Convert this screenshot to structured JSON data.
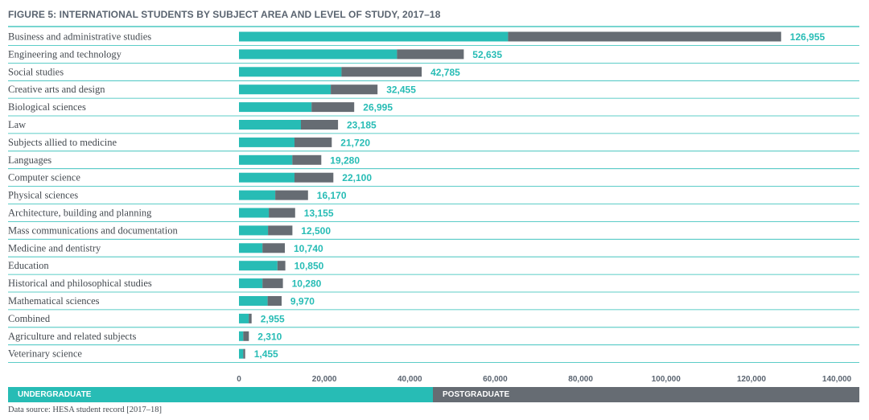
{
  "title": "FIGURE 5: INTERNATIONAL STUDENTS BY SUBJECT AREA AND LEVEL OF STUDY, 2017–18",
  "source": "Data source: HESA student record [2017–18]",
  "legend": {
    "undergraduate": "UNDERGRADUATE",
    "postgraduate": "POSTGRADUATE"
  },
  "colors": {
    "undergraduate": "#27bcb5",
    "postgraduate": "#666c73",
    "label": "#27bcb5",
    "rule": "#27bcb5"
  },
  "chart_data": {
    "type": "bar",
    "orientation": "horizontal",
    "stacked": true,
    "categories": [
      "Business and administrative studies",
      "Engineering and technology",
      "Social studies",
      "Creative arts and design",
      "Biological sciences",
      "Law",
      "Subjects allied to medicine",
      "Languages",
      "Computer science",
      "Physical sciences",
      "Architecture, building and planning",
      "Mass communications and documentation",
      "Medicine and dentistry",
      "Education",
      "Historical and philosophical studies",
      "Mathematical sciences",
      "Combined",
      "Agriculture and related subjects",
      "Veterinary science"
    ],
    "series": [
      {
        "name": "UNDERGRADUATE",
        "values": [
          63000,
          37000,
          24000,
          21500,
          17000,
          14500,
          13000,
          12500,
          13000,
          8500,
          7000,
          6800,
          5500,
          9000,
          5500,
          6700,
          2300,
          1000,
          1000
        ]
      },
      {
        "name": "POSTGRADUATE",
        "values": [
          63955,
          15635,
          18785,
          10955,
          9995,
          8685,
          8720,
          6780,
          9100,
          7670,
          6155,
          5700,
          5240,
          1850,
          4780,
          3270,
          655,
          1310,
          455
        ]
      }
    ],
    "totals": [
      "126,955",
      "52,635",
      "42,785",
      "32,455",
      "26,995",
      "23,185",
      "21,720",
      "19,280",
      "22,100",
      "16,170",
      "13,155",
      "12,500",
      "10,740",
      "10,850",
      "10,280",
      "9,970",
      "2,955",
      "2,310",
      "1,455"
    ],
    "total_values": [
      126955,
      52635,
      42785,
      32455,
      26995,
      23185,
      21720,
      19280,
      22100,
      16170,
      13155,
      12500,
      10740,
      10850,
      10280,
      9970,
      2955,
      2310,
      1455
    ],
    "xlim": [
      0,
      140000
    ],
    "x_ticks": [
      0,
      20000,
      40000,
      60000,
      80000,
      100000,
      120000,
      140000
    ],
    "x_tick_labels": [
      "0",
      "20,000",
      "40,000",
      "60,000",
      "80,000",
      "100,000",
      "120,000",
      "140,000"
    ],
    "legend_position": "bottom",
    "grid": false
  }
}
